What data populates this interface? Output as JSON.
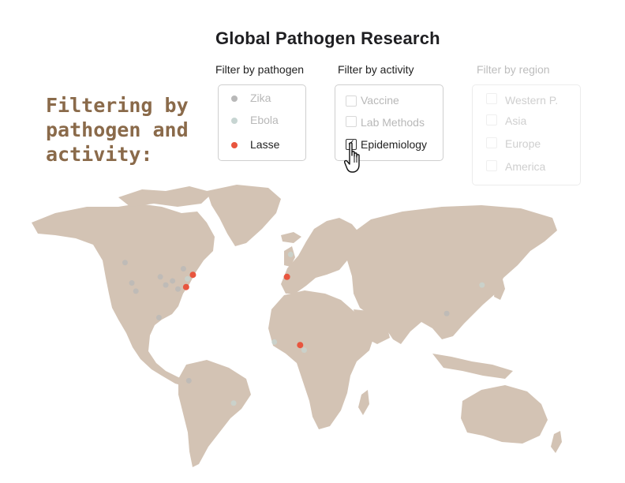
{
  "header": {
    "title": "Global Pathogen Research"
  },
  "annotation": [
    "Filtering by",
    "pathogen and",
    "activity:"
  ],
  "filters": {
    "pathogen": {
      "heading": "Filter by pathogen",
      "items": [
        {
          "label": "Zika",
          "color": "#b8b8b8",
          "active": false
        },
        {
          "label": "Ebola",
          "color": "#c7d5d2",
          "active": false
        },
        {
          "label": "Lasse",
          "color": "#e8553e",
          "active": true
        }
      ]
    },
    "activity": {
      "heading": "Filter by activity",
      "items": [
        {
          "label": "Vaccine",
          "checked": false
        },
        {
          "label": "Lab Methods",
          "checked": false
        },
        {
          "label": "Epidemiology",
          "checked": true
        }
      ]
    },
    "region": {
      "heading": "Filter by region",
      "items": [
        {
          "label": "Western P.",
          "checked": false
        },
        {
          "label": "Asia",
          "checked": false
        },
        {
          "label": "Europe",
          "checked": false
        },
        {
          "label": "America",
          "checked": false
        }
      ]
    }
  },
  "map": {
    "land_color": "#d3c3b4",
    "points": [
      {
        "pathogen": "Lasse",
        "highlight": true,
        "lon": -78,
        "lat": 35
      },
      {
        "pathogen": "Lasse",
        "highlight": true,
        "lon": -73,
        "lat": 41
      },
      {
        "pathogen": "Lasse",
        "highlight": true,
        "lon": -3.7,
        "lat": 40
      },
      {
        "pathogen": "Lasse",
        "highlight": true,
        "lon": 6,
        "lat": 6.5
      },
      {
        "pathogen": "Zika",
        "highlight": false,
        "lon": -123,
        "lat": 47
      },
      {
        "pathogen": "Zika",
        "highlight": false,
        "lon": -118,
        "lat": 37
      },
      {
        "pathogen": "Zika",
        "highlight": false,
        "lon": -115,
        "lat": 33
      },
      {
        "pathogen": "Zika",
        "highlight": false,
        "lon": -97,
        "lat": 40
      },
      {
        "pathogen": "Zika",
        "highlight": false,
        "lon": -93,
        "lat": 36
      },
      {
        "pathogen": "Zika",
        "highlight": false,
        "lon": -88,
        "lat": 38
      },
      {
        "pathogen": "Zika",
        "highlight": false,
        "lon": -84,
        "lat": 34
      },
      {
        "pathogen": "Zika",
        "highlight": false,
        "lon": -98,
        "lat": 20
      },
      {
        "pathogen": "Zika",
        "highlight": false,
        "lon": -76,
        "lat": -11
      },
      {
        "pathogen": "Zika",
        "highlight": false,
        "lon": 114,
        "lat": 22
      },
      {
        "pathogen": "Zika",
        "highlight": false,
        "lon": -80,
        "lat": 44
      },
      {
        "pathogen": "Ebola",
        "highlight": false,
        "lon": -43,
        "lat": -22
      },
      {
        "pathogen": "Ebola",
        "highlight": false,
        "lon": 140,
        "lat": 36
      },
      {
        "pathogen": "Ebola",
        "highlight": false,
        "lon": -13,
        "lat": 8
      },
      {
        "pathogen": "Ebola",
        "highlight": false,
        "lon": -1,
        "lat": 51
      },
      {
        "pathogen": "Ebola",
        "highlight": false,
        "lon": 9,
        "lat": 4
      },
      {
        "pathogen": "Ebola",
        "highlight": false,
        "lon": -77,
        "lat": 39
      }
    ]
  }
}
